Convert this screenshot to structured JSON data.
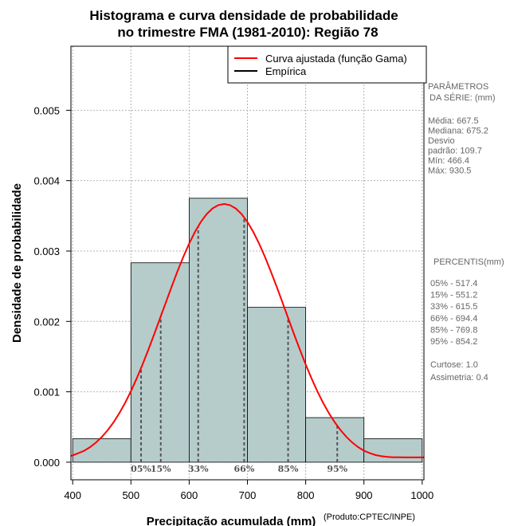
{
  "chart_data": {
    "type": "bar",
    "title": "Histograma e curva densidade de probabilidade",
    "subtitle": "no trimestre FMA (1981-2010): Região 78",
    "xlabel": "Precipitação acumulada (mm)",
    "ylabel": "Densidade de probabilidade",
    "credit": "(Produto:CPTEC/INPE)",
    "xlim": [
      397,
      1003
    ],
    "ylim": [
      -0.00025,
      0.00591
    ],
    "x_ticks": [
      400,
      500,
      600,
      700,
      800,
      900,
      1000
    ],
    "x_tick_labels": [
      "400",
      "500",
      "600",
      "700",
      "800",
      "900",
      "1000"
    ],
    "y_ticks": [
      0,
      0.001,
      0.002,
      0.003,
      0.004,
      0.005
    ],
    "y_tick_labels": [
      "0.000",
      "0.001",
      "0.002",
      "0.003",
      "0.004",
      "0.005"
    ],
    "grid": true,
    "bins": [
      {
        "x0": 400,
        "x1": 500,
        "density": 0.000333
      },
      {
        "x0": 500,
        "x1": 600,
        "density": 0.002833
      },
      {
        "x0": 600,
        "x1": 700,
        "density": 0.00375
      },
      {
        "x0": 700,
        "x1": 800,
        "density": 0.0022
      },
      {
        "x0": 800,
        "x1": 900,
        "density": 0.000633
      },
      {
        "x0": 900,
        "x1": 1000,
        "density": 0.000333
      }
    ],
    "fitted_curve": {
      "name": "Curva ajustada (função Gama)",
      "color": "#ff0000",
      "x": [
        397,
        410,
        420,
        430,
        440,
        450,
        460,
        470,
        480,
        490,
        500,
        510,
        520,
        530,
        540,
        550,
        560,
        570,
        580,
        590,
        600,
        610,
        620,
        630,
        640,
        650,
        660,
        670,
        680,
        690,
        700,
        710,
        720,
        730,
        740,
        750,
        760,
        770,
        780,
        790,
        800,
        810,
        820,
        830,
        840,
        850,
        860,
        870,
        880,
        890,
        900,
        910,
        920,
        930,
        940,
        950,
        960,
        970,
        980,
        990,
        1003
      ],
      "y": [
        8.8e-05,
        0.000128,
        0.000163,
        0.000214,
        0.000279,
        0.000358,
        0.000453,
        0.000565,
        0.000695,
        0.000843,
        0.001008,
        0.001191,
        0.001389,
        0.001599,
        0.001818,
        0.002044,
        0.002272,
        0.002497,
        0.002715,
        0.00292,
        0.003107,
        0.003273,
        0.003413,
        0.003524,
        0.003605,
        0.003652,
        0.003669,
        0.003652,
        0.003605,
        0.003524,
        0.003413,
        0.003273,
        0.003107,
        0.00292,
        0.002715,
        0.002497,
        0.002272,
        0.002044,
        0.001818,
        0.001599,
        0.001389,
        0.001191,
        0.001008,
        0.000843,
        0.000695,
        0.000565,
        0.000453,
        0.000358,
        0.000279,
        0.000214,
        0.000163,
        0.000128,
        0.000101,
        8.5e-05,
        7.6e-05,
        7.1e-05,
        6.9e-05,
        6.8e-05,
        6.8e-05,
        6.8e-05,
        6.8e-05
      ]
    },
    "empirical_name": "Empírica",
    "percentiles": [
      {
        "label": "05%",
        "value": 517.4
      },
      {
        "label": "15%",
        "value": 551.2
      },
      {
        "label": "33%",
        "value": 615.5
      },
      {
        "label": "66%",
        "value": 694.4
      },
      {
        "label": "85%",
        "value": 769.8
      },
      {
        "label": "95%",
        "value": 854.2
      }
    ],
    "colors": {
      "bar_fill": "#b5cccb",
      "bar_stroke": "#000000",
      "grid": "#b3b3b3",
      "percentile_line": "#555555",
      "side_text": "#666666"
    }
  },
  "side_panel": {
    "params_heading": [
      "PARÂMETROS",
      "DA SÉRIE: (mm)"
    ],
    "params_lines": [
      "Média:  667.5",
      "Mediana:  675.2",
      "Desvio",
      "padrão:  109.7",
      "Mín:  466.4",
      "Máx:  930.5"
    ],
    "percentis_heading": "PERCENTIS(mm)",
    "percentis_lines": [
      "05% -   517.4",
      "15% -   551.2",
      "33% -   615.5",
      "66% -   694.4",
      "85% -   769.8",
      "95% -   854.2"
    ],
    "stats_lines": [
      "Curtose:  1.0",
      "Assimetria:  0.4"
    ]
  }
}
